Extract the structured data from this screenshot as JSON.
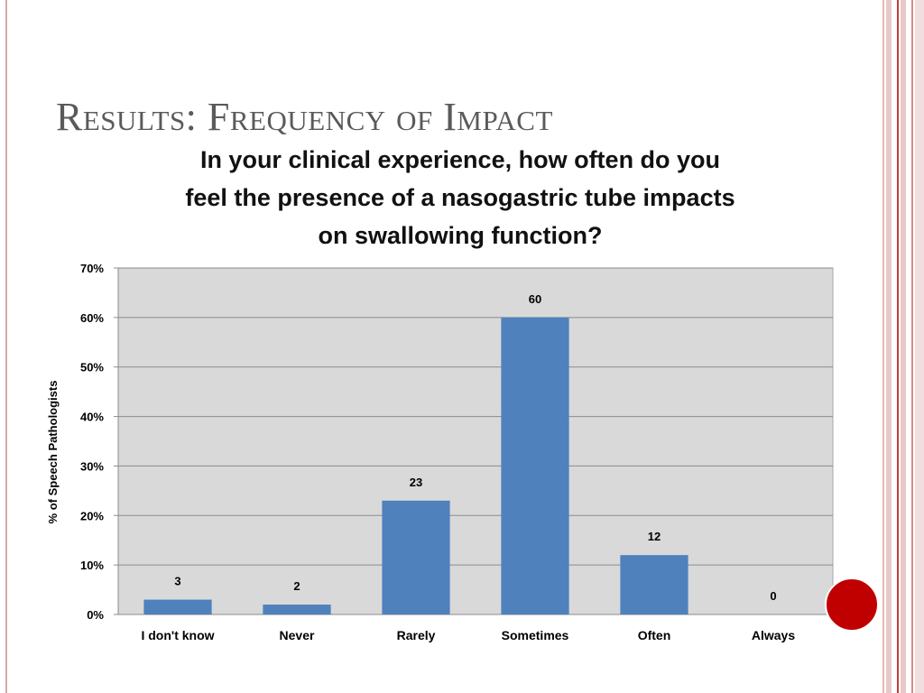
{
  "slide": {
    "title": "Results: Frequency of Impact"
  },
  "question_lines": [
    "In your clinical experience, how often do you",
    "feel the presence of a nasogastric tube impacts",
    "on swallowing function?"
  ],
  "colors": {
    "bar": "#4f81bd",
    "plot_bg": "#d9d9d9",
    "accent_circle": "#c00000",
    "title_text": "#5a5a5a"
  },
  "chart_data": {
    "type": "bar",
    "categories": [
      "I don't know",
      "Never",
      "Rarely",
      "Sometimes",
      "Often",
      "Always"
    ],
    "values": [
      3,
      2,
      23,
      60,
      12,
      0
    ],
    "data_labels": [
      "3",
      "2",
      "23",
      "60",
      "12",
      "0"
    ],
    "ylabel": "% of Speech Pathologists",
    "ylim": [
      0,
      70
    ],
    "y_ticks": [
      0,
      10,
      20,
      30,
      40,
      50,
      60,
      70
    ],
    "y_tick_labels": [
      "0%",
      "10%",
      "20%",
      "30%",
      "40%",
      "50%",
      "60%",
      "70%"
    ],
    "grid": true,
    "legend": "none"
  }
}
